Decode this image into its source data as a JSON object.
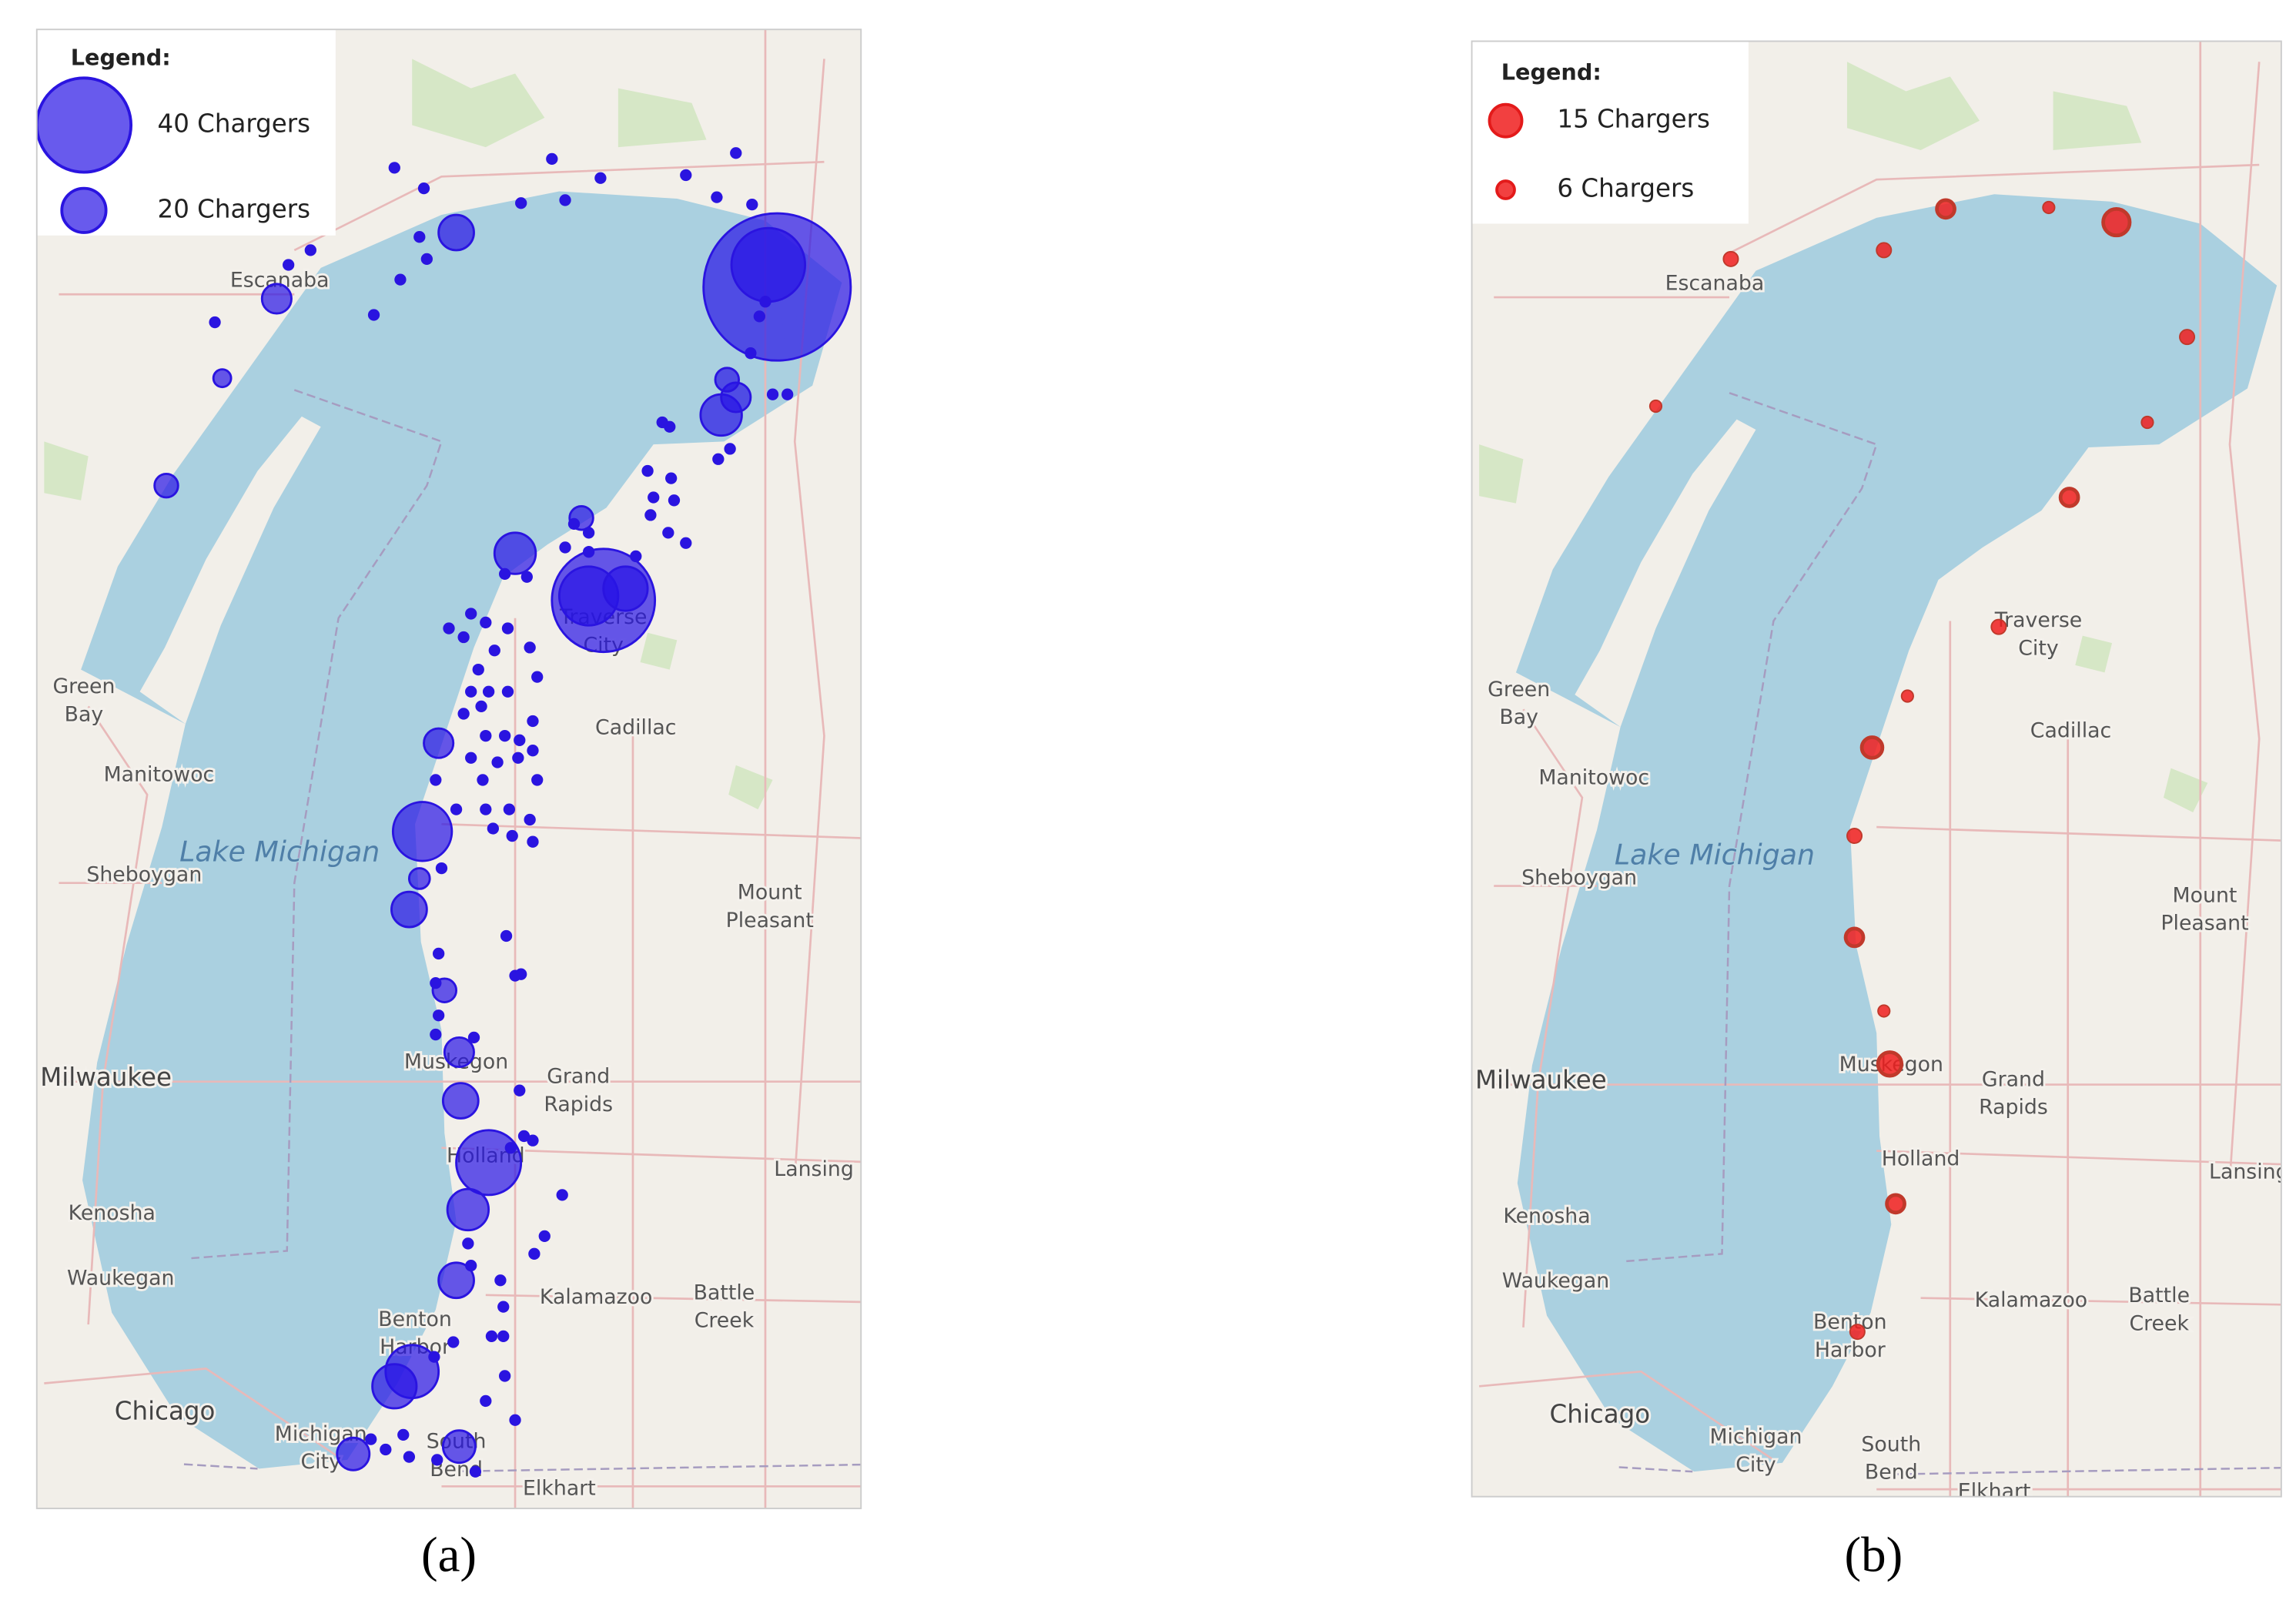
{
  "panels": [
    {
      "legend": {
        "title": "Legend:",
        "items": [
          "40 Chargers",
          "20 Chargers"
        ]
      },
      "map_labels": [
        [
          "Escanaba"
        ],
        [
          "Green",
          "Bay"
        ],
        [
          "Manitowoc"
        ],
        [
          "Sheboygan"
        ],
        [
          "Milwaukee"
        ],
        [
          "Kenosha"
        ],
        [
          "Waukegan"
        ],
        [
          "Chicago"
        ],
        [
          "Michigan",
          "City"
        ],
        [
          "South",
          "Bend"
        ],
        [
          "Elkhart"
        ],
        [
          "Benton",
          "Harbor"
        ],
        [
          "Kalamazoo"
        ],
        [
          "Battle",
          "Creek"
        ],
        [
          "Grand",
          "Rapids"
        ],
        [
          "Lansing"
        ],
        [
          "Holland"
        ],
        [
          "Muskegon"
        ],
        [
          "Cadillac"
        ],
        [
          "Traverse",
          "City"
        ],
        [
          "Mount",
          "Pleasant"
        ],
        [
          "Lake Michigan"
        ]
      ],
      "caption": "(a)"
    },
    {
      "legend": {
        "title": "Legend:",
        "items": [
          "15 Chargers",
          "6 Chargers"
        ]
      },
      "map_labels": [
        [
          "Escanaba"
        ],
        [
          "Green",
          "Bay"
        ],
        [
          "Manitowoc"
        ],
        [
          "Sheboygan"
        ],
        [
          "Milwaukee"
        ],
        [
          "Kenosha"
        ],
        [
          "Waukegan"
        ],
        [
          "Chicago"
        ],
        [
          "Michigan",
          "City"
        ],
        [
          "South",
          "Bend"
        ],
        [
          "Elkhart"
        ],
        [
          "Benton",
          "Harbor"
        ],
        [
          "Kalamazoo"
        ],
        [
          "Battle",
          "Creek"
        ],
        [
          "Grand",
          "Rapids"
        ],
        [
          "Lansing"
        ],
        [
          "Holland"
        ],
        [
          "Muskegon"
        ],
        [
          "Cadillac"
        ],
        [
          "Traverse",
          "City"
        ],
        [
          "Mount",
          "Pleasant"
        ],
        [
          "Lake Michigan"
        ]
      ],
      "caption": "(b)"
    }
  ]
}
